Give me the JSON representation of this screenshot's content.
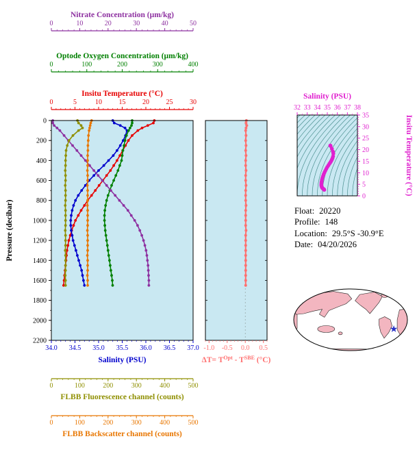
{
  "figure": {
    "background": "#ffffff",
    "panel_background": "#c9e8f2",
    "info": {
      "float_label": "Float:",
      "float_value": "20220",
      "profile_label": "Profile:",
      "profile_value": "148",
      "location_label": "Location:",
      "location_value": "29.5°S -30.9°E",
      "date_label": "Date:",
      "date_value": "04/20/2026"
    },
    "map": {
      "land_color": "#f3b6c0",
      "ocean_color": "#ffffff",
      "outline_color": "#000000",
      "marker": {
        "shape": "star",
        "color": "#2a35c8",
        "u": 0.76,
        "v": 0.3
      }
    }
  },
  "chart_data": [
    {
      "id": "profiles",
      "type": "line",
      "y_axis": {
        "label": "Pressure (decibar)",
        "color": "#000000",
        "range": [
          0,
          2200
        ],
        "ticks": [
          0,
          200,
          400,
          600,
          800,
          1000,
          1200,
          1400,
          1600,
          1800,
          2000,
          2200
        ],
        "minor_step": 100
      },
      "x_axes": {
        "salinity": {
          "label": "Salinity (PSU)",
          "color": "#0000cd",
          "range": [
            34.0,
            37.0
          ],
          "ticks": [
            "34.0",
            "34.5",
            "35.0",
            "35.5",
            "36.0",
            "36.5",
            "37.0"
          ],
          "minor_step": 0.1
        },
        "temperature": {
          "label": "Insitu Temperature (°C)",
          "color": "#e60000",
          "range": [
            0,
            30
          ],
          "ticks": [
            0,
            5,
            10,
            15,
            20,
            25,
            30
          ],
          "minor_step": 1
        },
        "oxygen": {
          "label": "Optode Oxygen Concentration (µm/kg)",
          "color": "#008000",
          "range": [
            0,
            400
          ],
          "ticks": [
            0,
            100,
            200,
            300,
            400
          ],
          "minor_step": 20
        },
        "nitrate": {
          "label": "Nitrate Concentration (µm/kg)",
          "color": "#8d30a0",
          "range": [
            0,
            50
          ],
          "ticks": [
            0,
            10,
            20,
            30,
            40,
            50
          ],
          "minor_step": 2
        },
        "fluorescence": {
          "label": "FLBB Fluorescence channel (counts)",
          "color": "#8f8f00",
          "range": [
            0,
            500
          ],
          "ticks": [
            0,
            100,
            200,
            300,
            400,
            500
          ],
          "minor_step": 20
        },
        "backscatter": {
          "label": "FLBB Backscatter channel (counts)",
          "color": "#e87600",
          "range": [
            0,
            500
          ],
          "ticks": [
            0,
            100,
            200,
            300,
            400,
            500
          ],
          "minor_step": 20
        }
      },
      "pressure_levels": [
        0,
        25,
        50,
        75,
        100,
        150,
        200,
        250,
        300,
        350,
        400,
        450,
        500,
        550,
        600,
        650,
        700,
        750,
        800,
        850,
        900,
        950,
        1000,
        1050,
        1100,
        1150,
        1200,
        1250,
        1300,
        1350,
        1400,
        1450,
        1500,
        1550,
        1600,
        1650
      ],
      "series": [
        {
          "name": "temperature",
          "axis": "temperature",
          "values": [
            21.8,
            21.6,
            20.4,
            19.2,
            18.3,
            17.1,
            16.3,
            15.7,
            15.1,
            14.5,
            13.9,
            13.2,
            12.5,
            11.7,
            10.9,
            10.1,
            9.3,
            8.5,
            7.7,
            7.0,
            6.3,
            5.7,
            5.1,
            4.7,
            4.3,
            4.0,
            3.7,
            3.5,
            3.3,
            3.2,
            3.1,
            3.0,
            2.9,
            2.8,
            2.7,
            2.6
          ]
        },
        {
          "name": "salinity",
          "axis": "salinity",
          "values": [
            35.3,
            35.33,
            35.46,
            35.56,
            35.6,
            35.57,
            35.52,
            35.46,
            35.39,
            35.31,
            35.21,
            35.11,
            35.0,
            34.9,
            34.8,
            34.72,
            34.64,
            34.57,
            34.51,
            34.47,
            34.44,
            34.42,
            34.41,
            34.41,
            34.42,
            34.44,
            34.46,
            34.49,
            34.52,
            34.55,
            34.58,
            34.61,
            34.64,
            34.66,
            34.68,
            34.7
          ]
        },
        {
          "name": "oxygen",
          "axis": "oxygen",
          "values": [
            228,
            228,
            226,
            222,
            218,
            212,
            208,
            205,
            202,
            200,
            198,
            193,
            188,
            182,
            176,
            170,
            165,
            160,
            156,
            153,
            151,
            150,
            150,
            151,
            152,
            154,
            156,
            158,
            160,
            162,
            164,
            166,
            168,
            170,
            172,
            173
          ]
        },
        {
          "name": "nitrate",
          "axis": "nitrate",
          "values": [
            0.5,
            0.5,
            1.0,
            2.0,
            3.0,
            4.5,
            6.0,
            7.5,
            9.0,
            10.5,
            12.0,
            13.5,
            15.0,
            16.5,
            18.0,
            19.5,
            21.0,
            22.5,
            24.0,
            25.5,
            27.0,
            28.2,
            29.4,
            30.4,
            31.2,
            31.9,
            32.5,
            33.0,
            33.4,
            33.7,
            33.9,
            34.1,
            34.2,
            34.3,
            34.4,
            34.4
          ]
        },
        {
          "name": "fluorescence",
          "axis": "fluorescence",
          "values": [
            92,
            96,
            105,
            110,
            96,
            76,
            62,
            56,
            52,
            51,
            50,
            50,
            49,
            50,
            50,
            49,
            50,
            50,
            50,
            49,
            50,
            50,
            50,
            50,
            49,
            50,
            50,
            50,
            49,
            50,
            50,
            50,
            50,
            49,
            50,
            50
          ]
        },
        {
          "name": "backscatter",
          "axis": "backscatter",
          "values": [
            142,
            139,
            137,
            135,
            133,
            131,
            130,
            129,
            129,
            128,
            128,
            128,
            127,
            128,
            128,
            127,
            128,
            128,
            128,
            127,
            128,
            128,
            128,
            128,
            127,
            128,
            128,
            128,
            128,
            127,
            128,
            128,
            128,
            127,
            128,
            128
          ]
        }
      ]
    },
    {
      "id": "delta_t",
      "type": "line",
      "color": "#ff7070",
      "x_axis": {
        "label_parts": [
          {
            "t": "ΔT= T"
          },
          {
            "t": "Opt",
            "sup": true
          },
          {
            "t": " - T"
          },
          {
            "t": "SBE",
            "sup": true
          },
          {
            "t": " (°C)"
          }
        ],
        "range": [
          -1.1,
          0.6
        ],
        "ticks": [
          "-1.0",
          "-0.5",
          "0.0",
          "0.5"
        ],
        "minor_step": 0.1
      },
      "values": [
        0.03,
        0.02,
        0.04,
        0.02,
        0.01,
        0.02,
        0.01,
        0.02,
        0.01,
        0.02,
        0.01,
        0.01,
        0.02,
        0.01,
        0.01,
        0.02,
        0.01,
        0.01,
        0.01,
        0.02,
        0.01,
        0.01,
        0.01,
        0.01,
        0.02,
        0.01,
        0.01,
        0.01,
        0.01,
        0.01,
        0.01,
        0.01,
        0.01,
        0.01,
        0.01,
        0.01
      ]
    },
    {
      "id": "ts_diagram",
      "type": "scatter",
      "color": "#e020cf",
      "contour_color": "#4a8f8f",
      "x_axis": {
        "label": "Salinity (PSU)",
        "range": [
          32,
          38
        ],
        "ticks": [
          32,
          33,
          34,
          35,
          36,
          37,
          38
        ],
        "minor_step": 0.5
      },
      "y_axis": {
        "label": "Insitu Temperature (°C)",
        "range": [
          0,
          35
        ],
        "ticks": [
          0,
          5,
          10,
          15,
          20,
          25,
          30,
          35
        ],
        "minor_step": 1
      }
    }
  ]
}
